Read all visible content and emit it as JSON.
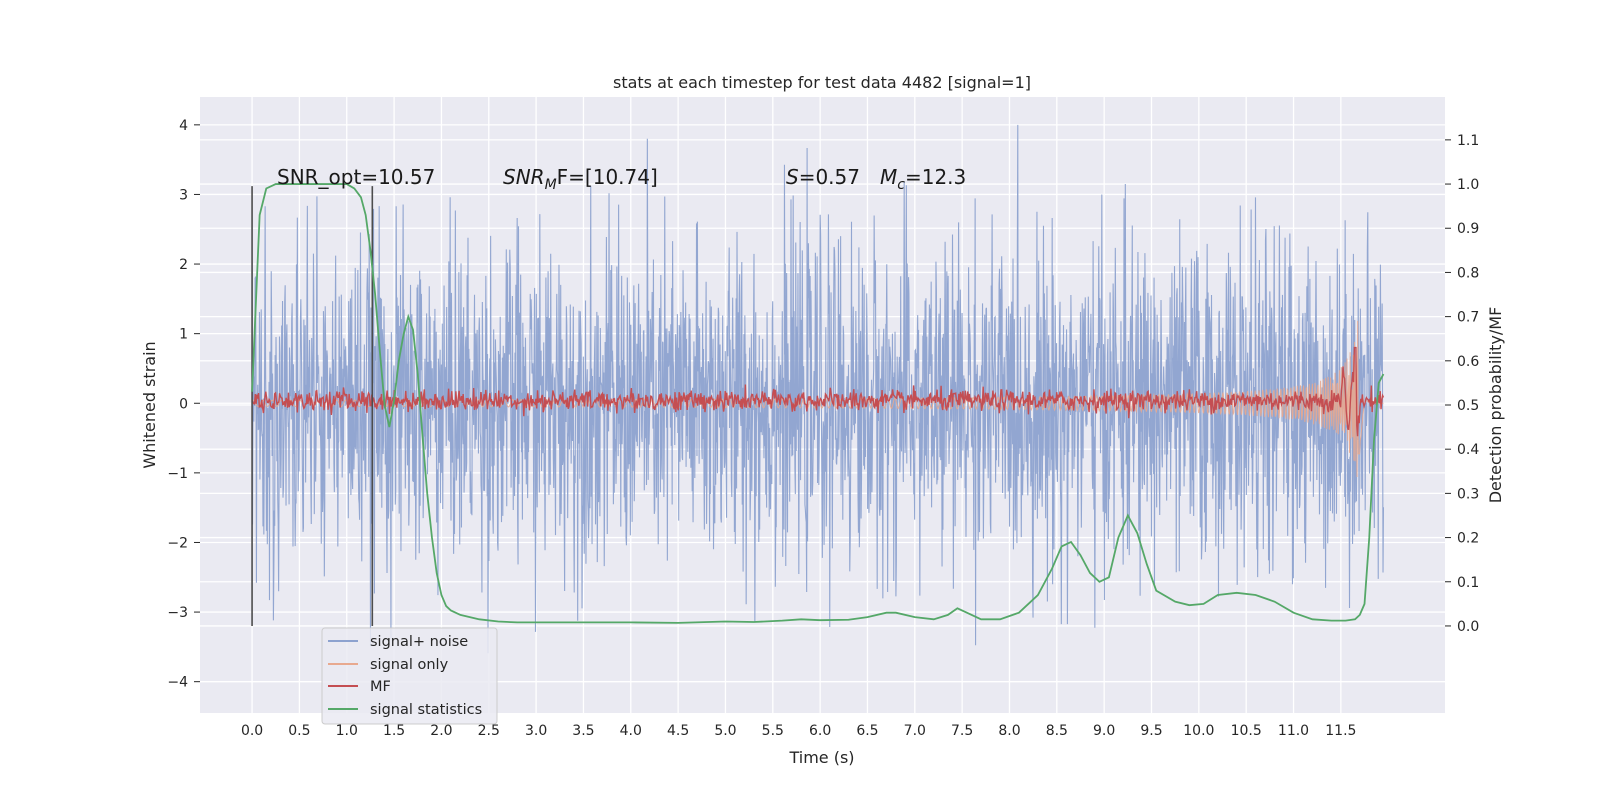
{
  "chart_data": {
    "type": "line",
    "title": "stats at each timestep for test data 4482 [signal=1]",
    "xlabel": "Time (s)",
    "ylabel": "Whitened strain",
    "y2label": "Detection probability/MF",
    "xlim": [
      -0.55,
      12.6
    ],
    "ylim": [
      -4.45,
      4.4
    ],
    "y2lim": [
      -0.197,
      1.197
    ],
    "x_ticks": [
      0.0,
      0.5,
      1.0,
      1.5,
      2.0,
      2.5,
      3.0,
      3.5,
      4.0,
      4.5,
      5.0,
      5.5,
      6.0,
      6.5,
      7.0,
      7.5,
      8.0,
      8.5,
      9.0,
      9.5,
      10.0,
      10.5,
      11.0,
      11.5
    ],
    "x_tick_labels": [
      "0.0",
      "0.5",
      "1.0",
      "1.5",
      "2.0",
      "2.5",
      "3.0",
      "3.5",
      "4.0",
      "4.5",
      "5.0",
      "5.5",
      "6.0",
      "6.5",
      "7.0",
      "7.5",
      "8.0",
      "8.5",
      "9.0",
      "9.5",
      "10.0",
      "10.5",
      "11.0",
      "11.5"
    ],
    "y_ticks": [
      -4,
      -3,
      -2,
      -1,
      0,
      1,
      2,
      3,
      4
    ],
    "y_tick_labels": [
      "−4",
      "−3",
      "−2",
      "−1",
      "0",
      "1",
      "2",
      "3",
      "4"
    ],
    "y2_ticks": [
      0.0,
      0.1,
      0.2,
      0.3,
      0.4,
      0.5,
      0.6,
      0.7,
      0.8,
      0.9,
      1.0,
      1.1
    ],
    "y2_tick_labels": [
      "0.0",
      "0.1",
      "0.2",
      "0.3",
      "0.4",
      "0.5",
      "0.6",
      "0.7",
      "0.8",
      "0.9",
      "1.0",
      "1.1"
    ],
    "grid": true,
    "legend_position": "lower-left",
    "signal_duration": [
      0.0,
      11.95
    ],
    "noise_envelope": {
      "mean": 0.0,
      "std": 1.0,
      "peak": 4.0
    },
    "vertical_markers": [
      0.0,
      1.27
    ],
    "annotations": [
      {
        "text": "SNR_opt=10.57"
      },
      {
        "text": "SNR",
        "sub": "M",
        "suffix": "F=[10.74]"
      },
      {
        "text": "S",
        "suffix": "=0.57"
      },
      {
        "text": "M",
        "sub": "c",
        "suffix": "=12.3"
      }
    ],
    "series": [
      {
        "name": "signal+ noise",
        "color": "#8da2cf"
      },
      {
        "name": "signal only",
        "color": "#e8a98f"
      },
      {
        "name": "MF",
        "color": "#c44e52"
      },
      {
        "name": "signal statistics",
        "color": "#55a868",
        "axis": "right",
        "x": [
          0.0,
          0.08,
          0.15,
          0.25,
          0.4,
          0.6,
          0.8,
          1.0,
          1.08,
          1.15,
          1.2,
          1.25,
          1.3,
          1.35,
          1.4,
          1.45,
          1.5,
          1.55,
          1.6,
          1.65,
          1.7,
          1.75,
          1.8,
          1.85,
          1.9,
          1.95,
          2.0,
          2.05,
          2.1,
          2.2,
          2.4,
          2.6,
          2.8,
          3.0,
          3.5,
          4.0,
          4.5,
          5.0,
          5.3,
          5.6,
          5.8,
          6.0,
          6.3,
          6.5,
          6.7,
          6.8,
          7.0,
          7.2,
          7.35,
          7.45,
          7.55,
          7.7,
          7.9,
          8.1,
          8.3,
          8.45,
          8.55,
          8.65,
          8.75,
          8.85,
          8.95,
          9.05,
          9.15,
          9.25,
          9.35,
          9.45,
          9.55,
          9.75,
          9.9,
          10.05,
          10.2,
          10.4,
          10.6,
          10.8,
          11.0,
          11.2,
          11.4,
          11.55,
          11.65,
          11.7,
          11.75,
          11.8,
          11.85,
          11.9,
          11.95
        ],
        "values": [
          0.53,
          0.93,
          0.99,
          1.0,
          1.0,
          1.0,
          1.0,
          1.0,
          0.99,
          0.97,
          0.93,
          0.85,
          0.75,
          0.62,
          0.5,
          0.45,
          0.51,
          0.6,
          0.66,
          0.7,
          0.67,
          0.57,
          0.43,
          0.3,
          0.2,
          0.12,
          0.07,
          0.045,
          0.035,
          0.025,
          0.015,
          0.01,
          0.008,
          0.008,
          0.008,
          0.008,
          0.007,
          0.01,
          0.009,
          0.012,
          0.015,
          0.013,
          0.014,
          0.02,
          0.03,
          0.03,
          0.02,
          0.015,
          0.025,
          0.04,
          0.03,
          0.015,
          0.015,
          0.03,
          0.07,
          0.13,
          0.18,
          0.19,
          0.16,
          0.12,
          0.1,
          0.11,
          0.2,
          0.25,
          0.21,
          0.14,
          0.08,
          0.055,
          0.047,
          0.05,
          0.07,
          0.075,
          0.07,
          0.055,
          0.03,
          0.015,
          0.012,
          0.012,
          0.015,
          0.025,
          0.05,
          0.2,
          0.42,
          0.55,
          0.57
        ]
      }
    ]
  }
}
